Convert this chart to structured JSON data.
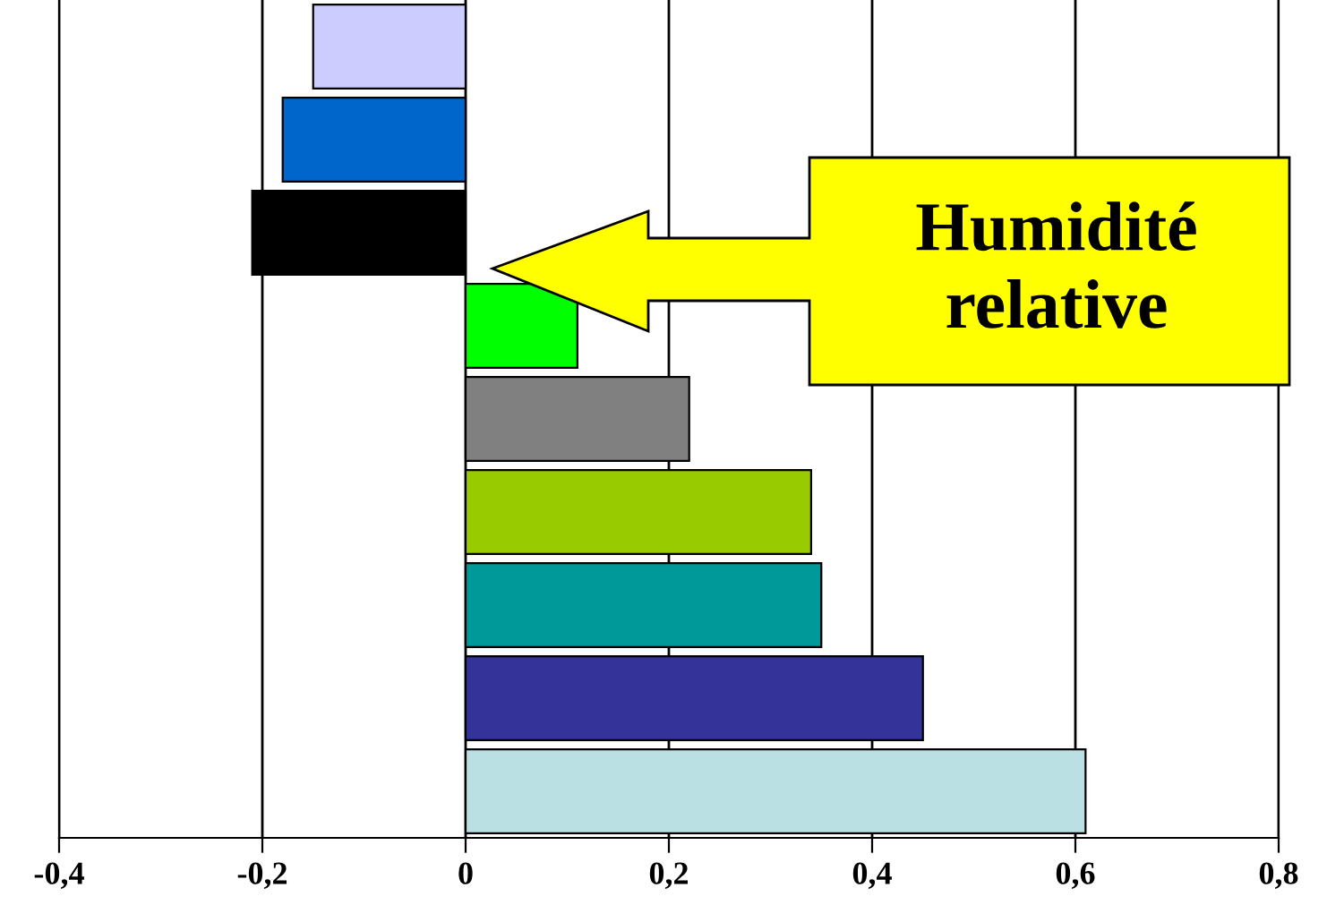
{
  "chart_data": {
    "type": "bar",
    "orientation": "horizontal",
    "categories": [
      null,
      null,
      null,
      null,
      null,
      null,
      null,
      null,
      null
    ],
    "values": [
      -0.15,
      -0.18,
      -0.21,
      0.11,
      0.22,
      0.34,
      0.35,
      0.45,
      0.61
    ],
    "colors": [
      "#ccccff",
      "#0066cc",
      "#000000",
      "#00ff00",
      "#808080",
      "#99cc00",
      "#009999",
      "#333399",
      "#bbe0e3"
    ],
    "xlim": [
      -0.4,
      0.8
    ],
    "xticks": [
      {
        "value": -0.4,
        "label": "-0,4"
      },
      {
        "value": -0.2,
        "label": "-0,2"
      },
      0,
      {
        "value": 0.2,
        "label": "0,2"
      },
      {
        "value": 0.4,
        "label": "0,4"
      },
      {
        "value": 0.6,
        "label": "0,6"
      },
      {
        "value": 0.8,
        "label": "0,8"
      }
    ],
    "grid": "x",
    "tick_labels": "x",
    "annotations": [
      "Humidité\nrelative"
    ]
  }
}
